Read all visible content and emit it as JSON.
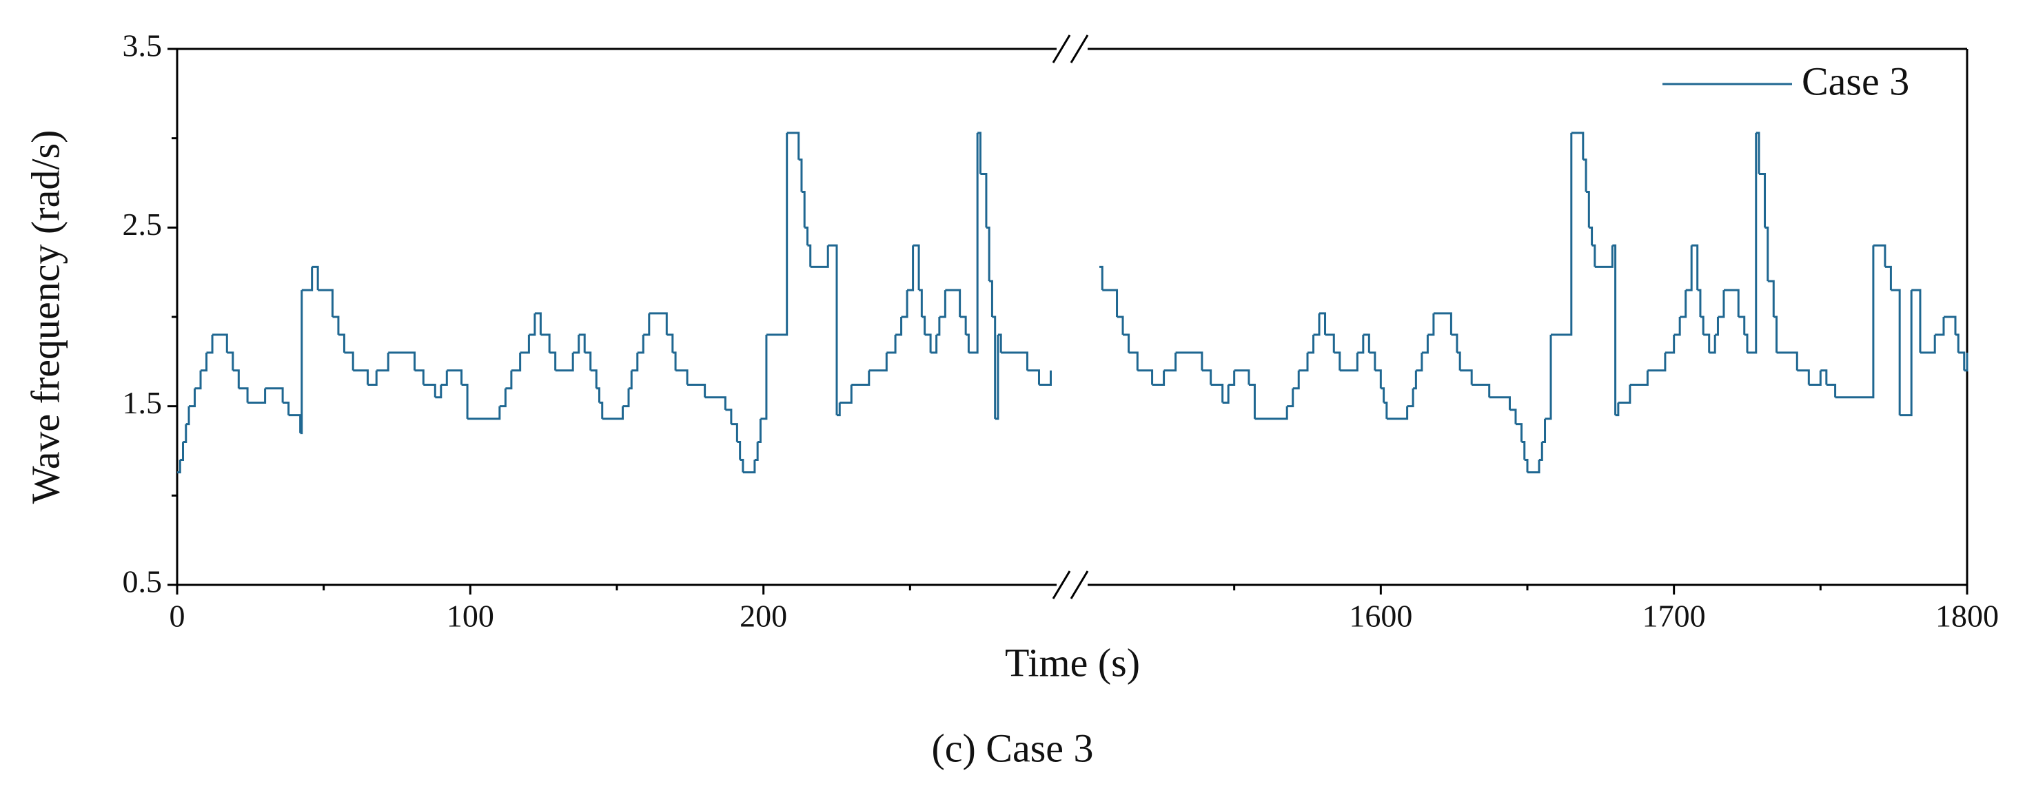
{
  "chart_data": {
    "type": "line",
    "step": "post",
    "x_label": "Time (s)",
    "y_label": "Wave frequency (rad/s)",
    "caption": "(c) Case 3",
    "legend": "upper right",
    "ylim": [
      0.5,
      3.5
    ],
    "yticks": [
      0.5,
      1.5,
      2.5,
      3.5
    ],
    "yminor": [
      1.0,
      2.0,
      3.0
    ],
    "series": {
      "name": "Case 3",
      "color": "#1f6791"
    },
    "segments": [
      {
        "xlim": [
          0,
          300
        ],
        "xticks": [
          0,
          100,
          200
        ],
        "xminor": [
          50,
          150,
          250
        ],
        "x": [
          0,
          1,
          2,
          3,
          4,
          6,
          8,
          10,
          12,
          17,
          19,
          21,
          24,
          30,
          36,
          38,
          42,
          42.5,
          46,
          48,
          53,
          55,
          57,
          60,
          65,
          68,
          72,
          81,
          84,
          88,
          90,
          92,
          97,
          99,
          110,
          112,
          114,
          117,
          120,
          122,
          124,
          127,
          129,
          135,
          137,
          139,
          141,
          143,
          144,
          145,
          152,
          154,
          155,
          157,
          159,
          161,
          167,
          169,
          170,
          174,
          180,
          187,
          189,
          191,
          192,
          193,
          197,
          198,
          199,
          201,
          208,
          212,
          213,
          214,
          215,
          216,
          222,
          225,
          226,
          230,
          236,
          242,
          245,
          247,
          249,
          251,
          253,
          254,
          255,
          257,
          259,
          260,
          262,
          267,
          269,
          270,
          273,
          274,
          276,
          277,
          278,
          279,
          280,
          281,
          290,
          294,
          298
        ],
        "values": [
          1.13,
          1.2,
          1.3,
          1.4,
          1.5,
          1.6,
          1.7,
          1.8,
          1.9,
          1.8,
          1.7,
          1.6,
          1.52,
          1.6,
          1.52,
          1.45,
          1.35,
          2.15,
          2.28,
          2.15,
          2.0,
          1.9,
          1.8,
          1.7,
          1.62,
          1.7,
          1.8,
          1.7,
          1.62,
          1.55,
          1.62,
          1.7,
          1.62,
          1.43,
          1.5,
          1.6,
          1.7,
          1.8,
          1.9,
          2.02,
          1.9,
          1.8,
          1.7,
          1.8,
          1.9,
          1.8,
          1.7,
          1.6,
          1.52,
          1.43,
          1.5,
          1.6,
          1.7,
          1.8,
          1.9,
          2.02,
          1.9,
          1.8,
          1.7,
          1.62,
          1.55,
          1.48,
          1.4,
          1.3,
          1.2,
          1.13,
          1.2,
          1.3,
          1.43,
          1.9,
          3.03,
          2.88,
          2.7,
          2.5,
          2.4,
          2.28,
          2.4,
          1.45,
          1.52,
          1.62,
          1.7,
          1.8,
          1.9,
          2.0,
          2.15,
          2.4,
          2.15,
          2.0,
          1.9,
          1.8,
          1.9,
          2.0,
          2.15,
          2.0,
          1.9,
          1.8,
          3.03,
          2.8,
          2.5,
          2.2,
          2.0,
          1.43,
          1.9,
          1.8,
          1.7,
          1.62,
          1.7
        ]
      },
      {
        "xlim": [
          1500,
          1800
        ],
        "xticks": [
          1600,
          1700,
          1800
        ],
        "xminor": [
          1550,
          1650,
          1750
        ],
        "x": [
          1504,
          1505,
          1510,
          1512,
          1514,
          1517,
          1522,
          1526,
          1530,
          1539,
          1542,
          1546,
          1548,
          1550,
          1555,
          1557,
          1568,
          1570,
          1572,
          1575,
          1577,
          1579,
          1581,
          1584,
          1586,
          1592,
          1594,
          1596,
          1598,
          1600,
          1601,
          1602,
          1609,
          1611,
          1612,
          1614,
          1616,
          1618,
          1624,
          1626,
          1627,
          1631,
          1637,
          1644,
          1646,
          1648,
          1649,
          1650,
          1654,
          1655,
          1656,
          1658,
          1665,
          1669,
          1670,
          1671,
          1672,
          1673,
          1679,
          1680,
          1681,
          1685,
          1691,
          1697,
          1700,
          1702,
          1704,
          1706,
          1708,
          1709,
          1710,
          1712,
          1714,
          1715,
          1717,
          1722,
          1724,
          1725,
          1728,
          1729,
          1731,
          1732,
          1734,
          1735,
          1742,
          1746,
          1750,
          1752,
          1755,
          1768,
          1772,
          1774,
          1777,
          1781,
          1784,
          1789,
          1792,
          1796,
          1797,
          1799,
          1800
        ],
        "values": [
          2.28,
          2.15,
          2.0,
          1.9,
          1.8,
          1.7,
          1.62,
          1.7,
          1.8,
          1.7,
          1.62,
          1.52,
          1.62,
          1.7,
          1.62,
          1.43,
          1.5,
          1.6,
          1.7,
          1.8,
          1.9,
          2.02,
          1.9,
          1.8,
          1.7,
          1.8,
          1.9,
          1.8,
          1.7,
          1.6,
          1.52,
          1.43,
          1.5,
          1.6,
          1.7,
          1.8,
          1.9,
          2.02,
          1.9,
          1.8,
          1.7,
          1.62,
          1.55,
          1.48,
          1.4,
          1.3,
          1.2,
          1.13,
          1.2,
          1.3,
          1.43,
          1.9,
          3.03,
          2.88,
          2.7,
          2.5,
          2.4,
          2.28,
          2.4,
          1.45,
          1.52,
          1.62,
          1.7,
          1.8,
          1.9,
          2.0,
          2.15,
          2.4,
          2.15,
          2.0,
          1.9,
          1.8,
          1.9,
          2.0,
          2.15,
          2.0,
          1.9,
          1.8,
          3.03,
          2.8,
          2.5,
          2.2,
          2.0,
          1.8,
          1.7,
          1.62,
          1.7,
          1.62,
          1.55,
          2.4,
          2.28,
          2.15,
          1.45,
          2.15,
          1.8,
          1.9,
          2.0,
          1.9,
          1.8,
          1.7,
          1.8
        ]
      }
    ]
  }
}
